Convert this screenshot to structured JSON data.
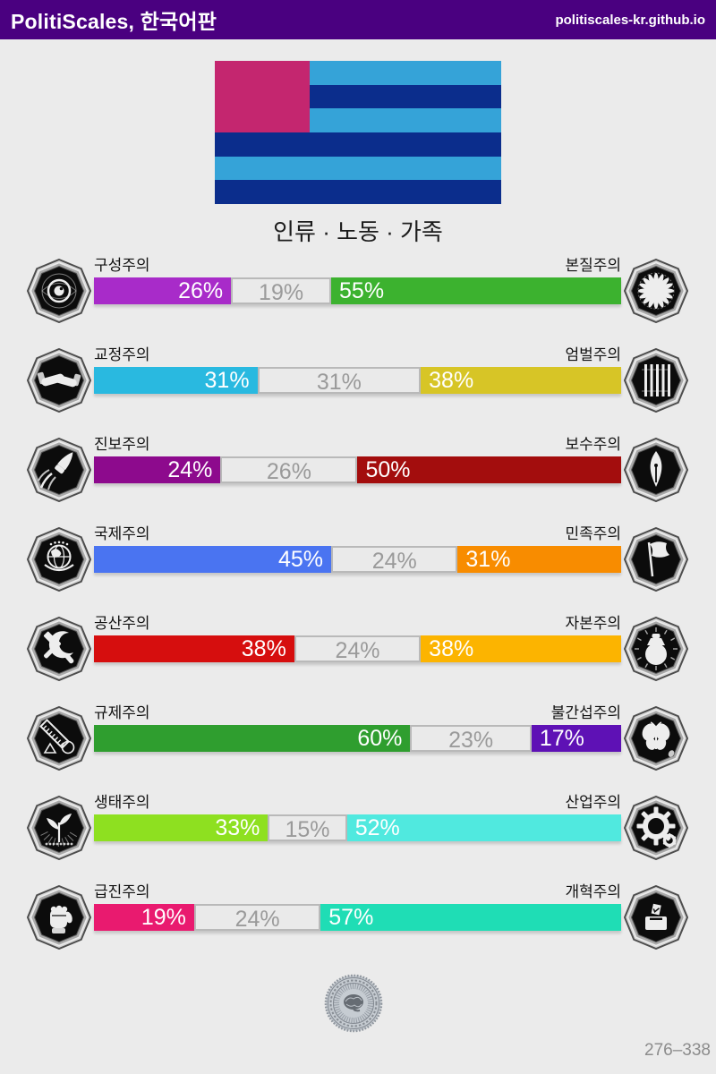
{
  "header": {
    "title": "PolitiScales, 한국어판",
    "site": "politiscales-kr.github.io",
    "bg_color": "#4a0080"
  },
  "flag": {
    "stripe_colors": [
      "#35a3d8",
      "#0b2d8c",
      "#35a3d8",
      "#0b2d8c",
      "#35a3d8",
      "#0b2d8c"
    ],
    "canton_color": "#c4266f"
  },
  "slogan": "인류 · 노동 · 가족",
  "axes": [
    {
      "left_label": "구성주의",
      "right_label": "본질주의",
      "left_value": 26,
      "neutral_value": 19,
      "right_value": 55,
      "left_color": "#a82bc9",
      "right_color": "#3cb22f",
      "left_icon": "constructivism-eye-icon",
      "right_icon": "essentialism-flower-icon"
    },
    {
      "left_label": "교정주의",
      "right_label": "엄벌주의",
      "left_value": 31,
      "neutral_value": 31,
      "right_value": 38,
      "left_color": "#29b9e0",
      "right_color": "#d7c526",
      "left_icon": "rehabilitative-justice-handshake-icon",
      "right_icon": "punitive-justice-prison-bars-icon"
    },
    {
      "left_label": "진보주의",
      "right_label": "보수주의",
      "left_value": 24,
      "neutral_value": 26,
      "right_value": 50,
      "left_color": "#8d0a8d",
      "right_color": "#a30d0d",
      "left_icon": "progressivism-rocket-icon",
      "right_icon": "conservatism-pen-icon"
    },
    {
      "left_label": "국제주의",
      "right_label": "민족주의",
      "left_value": 45,
      "neutral_value": 24,
      "right_value": 31,
      "left_color": "#4a74f1",
      "right_color": "#f88c00",
      "left_icon": "internationalism-globe-icon",
      "right_icon": "nationalism-flag-icon"
    },
    {
      "left_label": "공산주의",
      "right_label": "자본주의",
      "left_value": 38,
      "neutral_value": 24,
      "right_value": 38,
      "left_color": "#d60e0e",
      "right_color": "#fcb400",
      "left_icon": "communism-hammer-sickle-icon",
      "right_icon": "capitalism-money-bag-icon"
    },
    {
      "left_label": "규제주의",
      "right_label": "불간섭주의",
      "left_value": 60,
      "neutral_value": 23,
      "right_value": 17,
      "left_color": "#2f9e2f",
      "right_color": "#5e11b5",
      "left_icon": "regulationism-ruler-icon",
      "right_icon": "laissez-faire-butterfly-icon"
    },
    {
      "left_label": "생태주의",
      "right_label": "산업주의",
      "left_value": 33,
      "neutral_value": 15,
      "right_value": 52,
      "left_color": "#8ee020",
      "right_color": "#50e9df",
      "left_icon": "ecology-plant-icon",
      "right_icon": "productivism-gear-icon"
    },
    {
      "left_label": "급진주의",
      "right_label": "개혁주의",
      "left_value": 19,
      "neutral_value": 24,
      "right_value": 57,
      "left_color": "#e91a6f",
      "right_color": "#1fddb5",
      "left_icon": "revolution-fist-icon",
      "right_icon": "reformism-ballot-icon"
    }
  ],
  "neutral_text_color": "#9a9a9a",
  "footer": {
    "code": "276–338",
    "seal": "pragmatism-seal"
  }
}
